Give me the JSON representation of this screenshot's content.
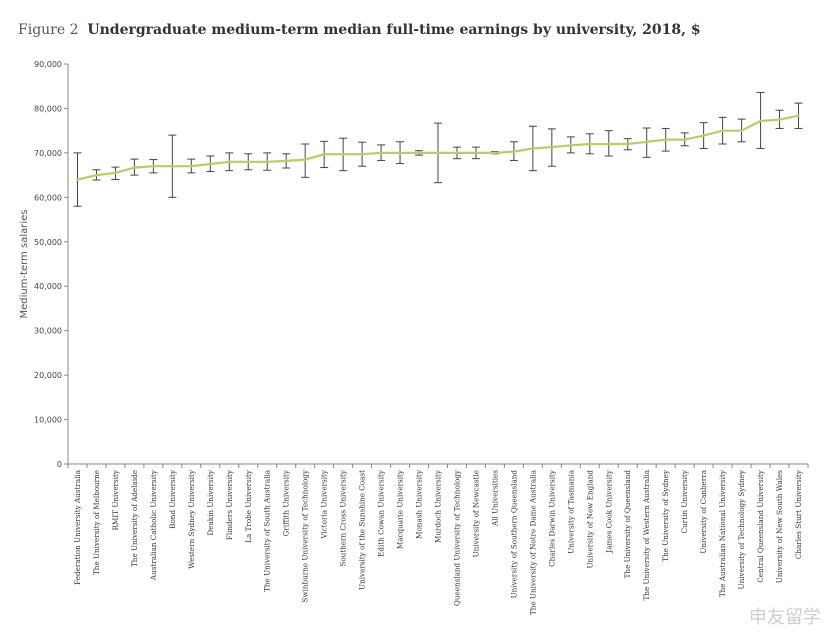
{
  "title": {
    "figure_label": "Figure 2",
    "text": "Undergraduate medium-term median full-time earnings by university, 2018, $"
  },
  "watermark": "申友留学",
  "chart_data": {
    "type": "line",
    "title": "Undergraduate medium-term median full-time earnings by university, 2018, $",
    "xlabel": "",
    "ylabel": "Medium-term salaries",
    "ylim": [
      0,
      90000
    ],
    "yticks": [
      "0",
      "10,000",
      "20,000",
      "30,000",
      "40,000",
      "50,000",
      "60,000",
      "70,000",
      "80,000",
      "90,000"
    ],
    "grid": false,
    "line_color": "#b3cf6a",
    "errorbar_color": "#444444",
    "categories": [
      "Federation University Australia",
      "The University of Melbourne",
      "RMIT University",
      "The University of Adelaide",
      "Australian Catholic University",
      "Bond University",
      "Western Sydney University",
      "Deakin University",
      "Flinders University",
      "La Trobe University",
      "The University of South Australia",
      "Griffith University",
      "Swinburne University of Technology",
      "Victoria University",
      "Southern Cross University",
      "University of the Sunshine Coast",
      "Edith Cowan University",
      "Macquarie University",
      "Monash University",
      "Murdoch University",
      "Queensland University of Technology",
      "University of Newcastle",
      "All Universities",
      "University of Southern Queensland",
      "The University of Notre Dame Australia",
      "Charles Darwin University",
      "University of Tasmania",
      "University of New England",
      "James Cook University",
      "The University of Queensland",
      "The University of Western Australia",
      "The University of Sydney",
      "Curtin University",
      "University of Canberra",
      "The Australian National University",
      "University of Technology Sydney",
      "Central Queensland University",
      "University of New South Wales",
      "Charles Sturt University"
    ],
    "series": [
      {
        "values": [
          64000,
          65000,
          65500,
          66700,
          67000,
          67000,
          67000,
          67500,
          68000,
          68000,
          68000,
          68200,
          68500,
          69700,
          69700,
          69700,
          70000,
          70000,
          70000,
          70000,
          70000,
          70000,
          70000,
          70300,
          71000,
          71300,
          71700,
          72000,
          72000,
          72000,
          72500,
          73000,
          73000,
          73900,
          75000,
          75000,
          77200,
          77500,
          78400
        ],
        "lower": [
          58000,
          63900,
          64000,
          65000,
          65500,
          60000,
          65500,
          65800,
          66000,
          66200,
          66100,
          66600,
          64500,
          66700,
          66000,
          67000,
          68300,
          67600,
          69500,
          63300,
          68700,
          68700,
          69800,
          68300,
          66000,
          67000,
          70000,
          69800,
          69300,
          70700,
          69000,
          70400,
          71600,
          71000,
          72000,
          72500,
          71000,
          75500,
          75500
        ],
        "upper": [
          70000,
          66200,
          66800,
          68600,
          68500,
          74000,
          68600,
          69300,
          70000,
          69800,
          70000,
          69800,
          72000,
          72600,
          73300,
          72400,
          71800,
          72500,
          70500,
          76700,
          71300,
          71300,
          70300,
          72500,
          76000,
          75400,
          73600,
          74300,
          75000,
          73200,
          75600,
          75500,
          74500,
          76800,
          78000,
          77600,
          83600,
          79600,
          81200
        ]
      }
    ]
  }
}
